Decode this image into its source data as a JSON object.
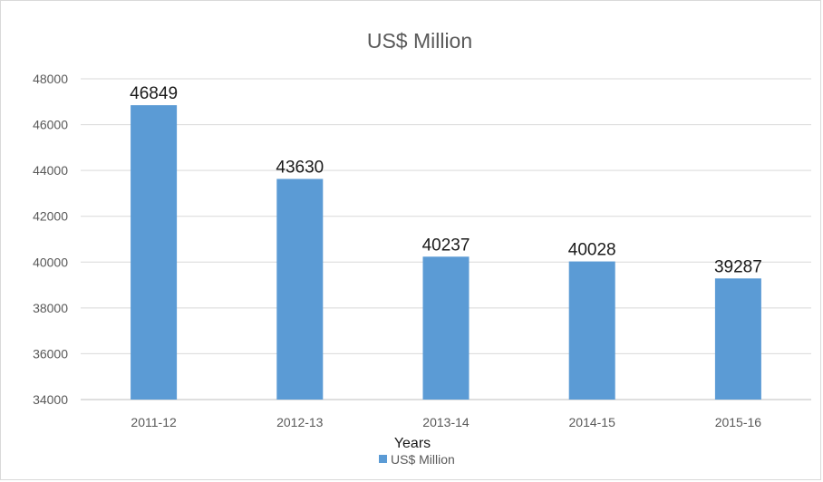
{
  "chart_data": {
    "type": "bar",
    "title": "US$ Million",
    "xlabel": "Years",
    "ylabel": "",
    "categories": [
      "2011-12",
      "2012-13",
      "2013-14",
      "2014-15",
      "2015-16"
    ],
    "series": [
      {
        "name": "US$ Million",
        "values": [
          46849,
          43630,
          40237,
          40028,
          39287
        ]
      }
    ],
    "data_labels": [
      "46849",
      "43630",
      "40237",
      "40028",
      "39287"
    ],
    "ylim": [
      34000,
      48000
    ],
    "yticks": [
      34000,
      36000,
      38000,
      40000,
      42000,
      44000,
      46000,
      48000
    ],
    "grid": true,
    "legend_position": "bottom",
    "colors": {
      "bar": "#5b9bd5",
      "grid": "#d9d9d9",
      "axis": "#bfbfbf"
    }
  }
}
